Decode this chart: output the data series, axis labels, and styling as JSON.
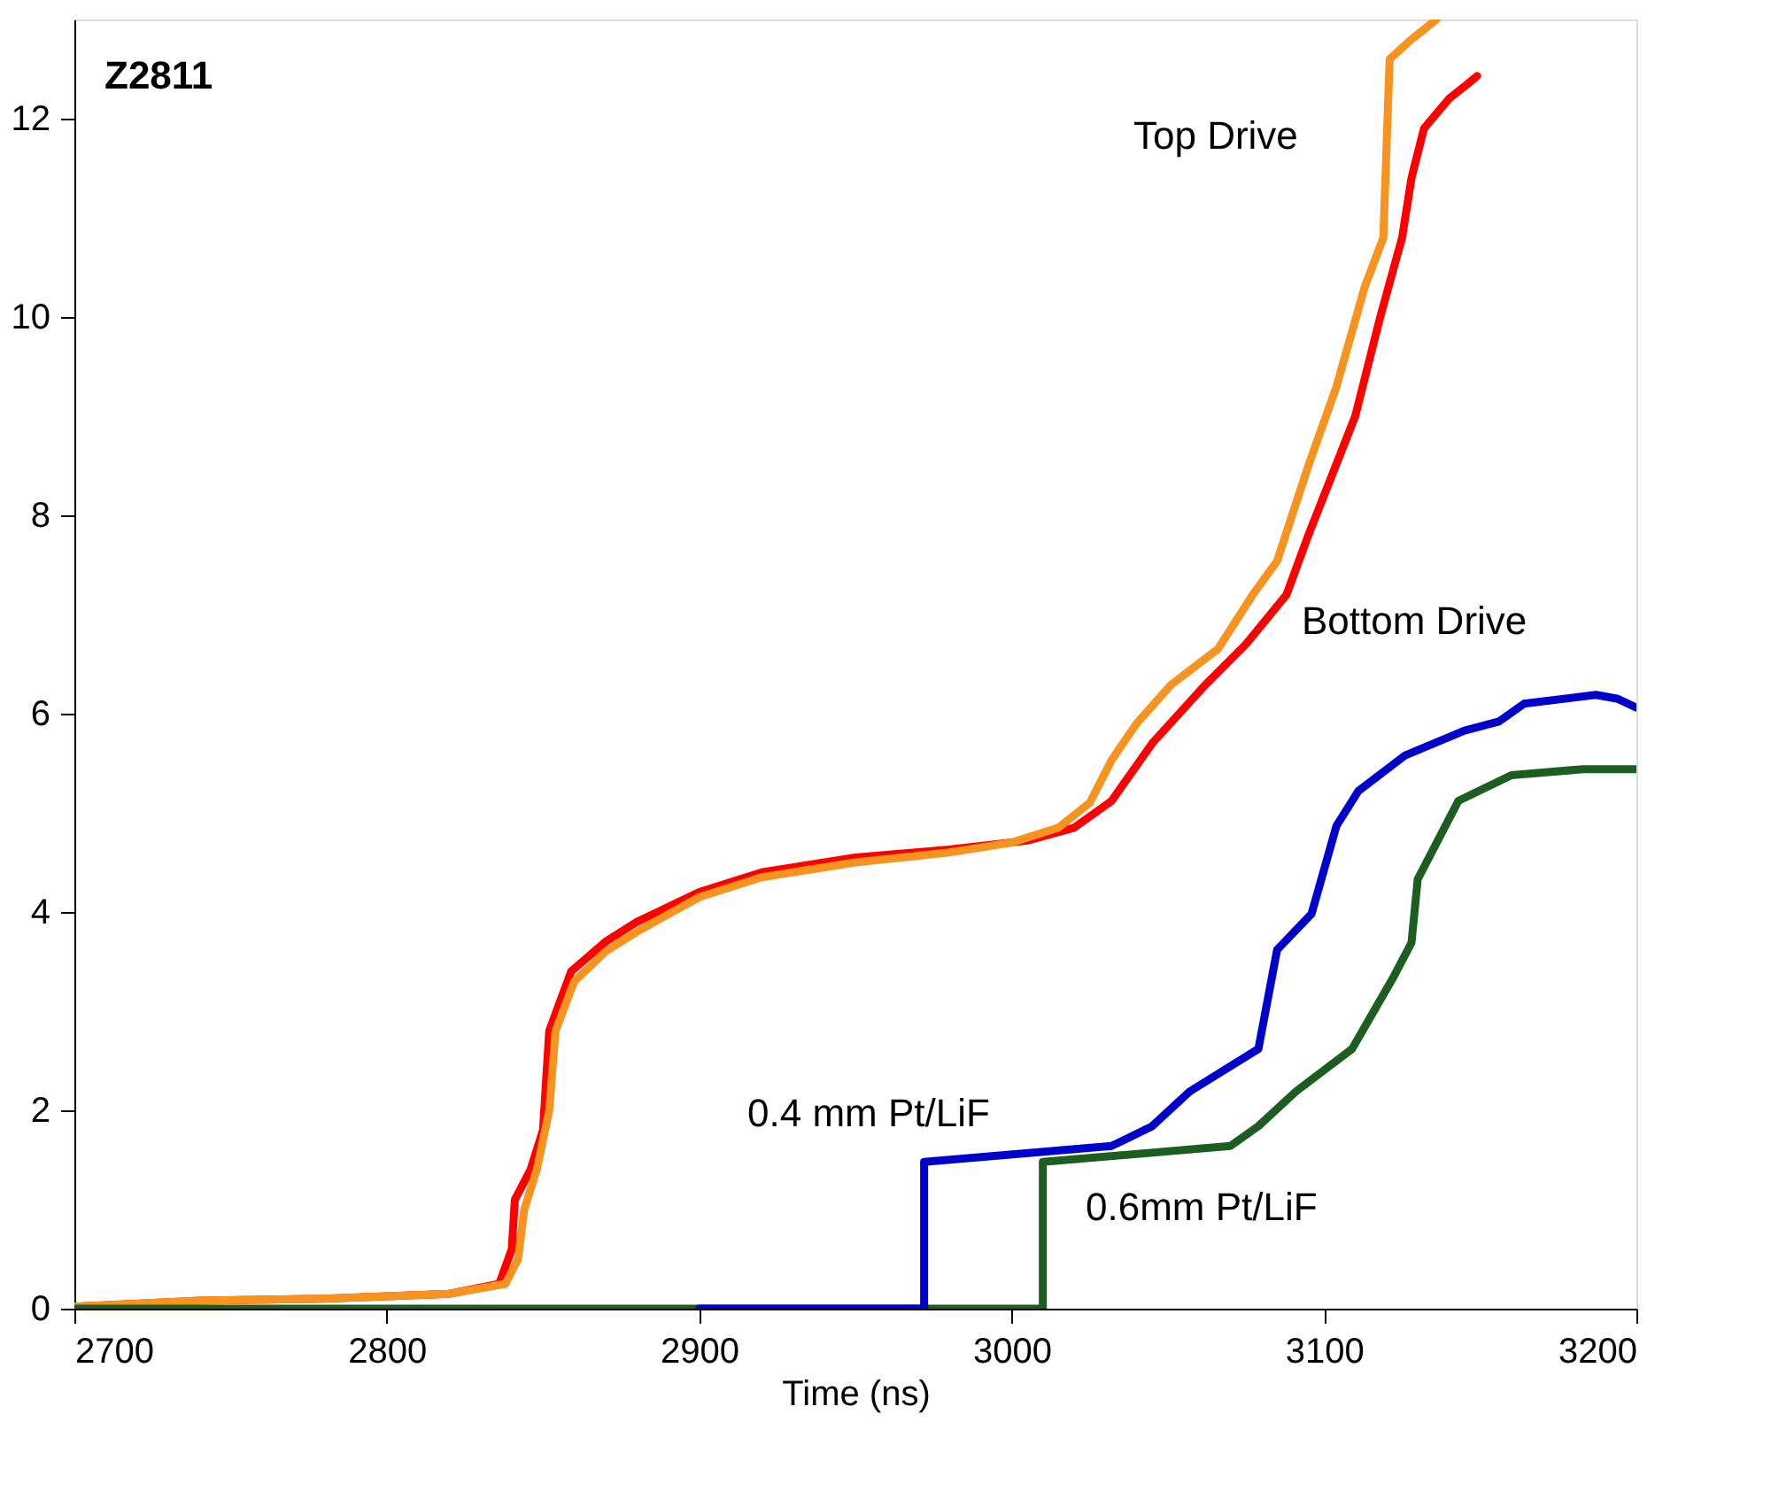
{
  "chart_data": {
    "type": "line",
    "xlabel": "Time (ns)",
    "xlim": [
      2700,
      3200
    ],
    "xticks": [
      2700,
      2800,
      2900,
      3000,
      3100,
      3200
    ],
    "ylim": [
      0,
      13
    ],
    "yticks": [
      0,
      2,
      4,
      6,
      8,
      10,
      12
    ],
    "grid": false,
    "marker": "none",
    "line_style": "solid",
    "annotations": [
      "Z2811",
      "Top Drive",
      "Bottom Drive",
      "0.4 mm Pt/LiF",
      "0.6mm Pt/LiF"
    ],
    "series": [
      {
        "color": "#ff0000",
        "x": [
          2700,
          2740,
          2780,
          2820,
          2836,
          2840,
          2841,
          2846,
          2850,
          2852,
          2859,
          2870,
          2880,
          2900,
          2920,
          2950,
          2980,
          3005,
          3020,
          3032,
          3045,
          3062,
          3075,
          3088,
          3095,
          3105,
          3110,
          3118,
          3125,
          3128,
          3132,
          3140,
          3146,
          3149
        ],
        "values": [
          0.02,
          0.08,
          0.1,
          0.15,
          0.25,
          0.6,
          1.1,
          1.4,
          1.8,
          2.8,
          3.4,
          3.7,
          3.9,
          4.2,
          4.4,
          4.55,
          4.63,
          4.72,
          4.85,
          5.12,
          5.7,
          6.29,
          6.7,
          7.2,
          7.8,
          8.6,
          9.0,
          10.0,
          10.8,
          11.4,
          11.9,
          12.2,
          12.35,
          12.43
        ]
      },
      {
        "color": "#f7931e",
        "x": [
          2700,
          2740,
          2780,
          2820,
          2838,
          2842,
          2844,
          2848,
          2852,
          2854,
          2860,
          2870,
          2880,
          2900,
          2920,
          2950,
          2980,
          3000,
          3015,
          3025,
          3032,
          3040,
          3051,
          3066,
          3077,
          3085,
          3095,
          3104,
          3113,
          3119,
          3121,
          3128,
          3136
        ],
        "values": [
          0.02,
          0.08,
          0.1,
          0.15,
          0.25,
          0.5,
          1.0,
          1.4,
          2.0,
          2.8,
          3.3,
          3.6,
          3.8,
          4.15,
          4.35,
          4.5,
          4.6,
          4.7,
          4.85,
          5.1,
          5.53,
          5.9,
          6.29,
          6.65,
          7.19,
          7.54,
          8.5,
          9.3,
          10.3,
          10.8,
          12.6,
          12.8,
          13.0
        ]
      },
      {
        "color": "#1b5e20",
        "x": [
          2700,
          3010,
          3010,
          3070,
          3079,
          3091,
          3109,
          3122,
          3128,
          3130,
          3143,
          3160,
          3183,
          3200
        ],
        "values": [
          0,
          0,
          1.48,
          1.64,
          1.84,
          2.19,
          2.62,
          3.33,
          3.69,
          4.33,
          5.12,
          5.38,
          5.44,
          5.44
        ]
      },
      {
        "color": "#0000cc",
        "x": [
          2900,
          2972,
          2972,
          3032,
          3045,
          3057,
          3079,
          3085,
          3096,
          3104,
          3111,
          3126,
          3145,
          3156,
          3164,
          3187,
          3194,
          3200
        ],
        "values": [
          0,
          0,
          1.48,
          1.64,
          1.84,
          2.19,
          2.62,
          3.62,
          3.98,
          4.87,
          5.22,
          5.58,
          5.83,
          5.92,
          6.1,
          6.19,
          6.15,
          6.06
        ]
      }
    ]
  }
}
